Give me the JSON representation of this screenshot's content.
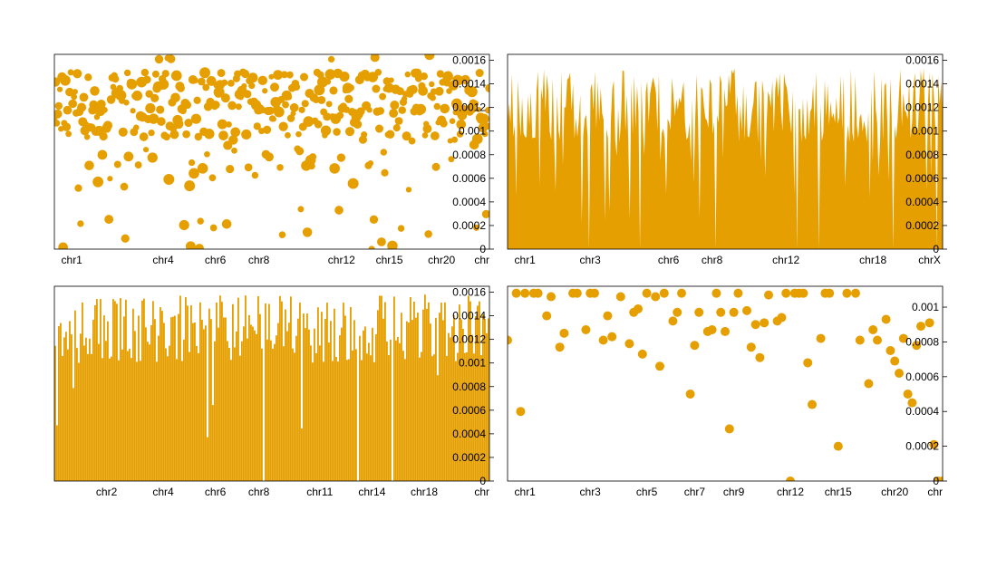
{
  "colors": {
    "series": "#E69F00",
    "frame": "#000000",
    "background": "#ffffff"
  },
  "chart_data": [
    {
      "type": "scatter",
      "title": "",
      "xlabel": "",
      "ylabel": "",
      "ylim": [
        0,
        0.00165
      ],
      "grid": false,
      "y_ticks": [
        "0",
        "0.0002",
        "0.0004",
        "0.0006",
        "0.0008",
        "0.001",
        "0.0012",
        "0.0014",
        "0.0016"
      ],
      "y_tick_values": [
        0,
        0.0002,
        0.0004,
        0.0006,
        0.0008,
        0.001,
        0.0012,
        0.0014,
        0.0016
      ],
      "x_ticks": [
        "chr1",
        "chr4",
        "chr6",
        "chr8",
        "chr12",
        "chr15",
        "chr20",
        "chr"
      ],
      "x_tick_values": [
        0.04,
        0.25,
        0.37,
        0.47,
        0.66,
        0.77,
        0.89,
        0.995
      ],
      "marker": "variable-size-circles",
      "seed": 11,
      "series": [
        {
          "n": 400
        }
      ]
    },
    {
      "type": "area",
      "title": "",
      "xlabel": "",
      "ylabel": "",
      "ylim": [
        0,
        0.00165
      ],
      "grid": false,
      "y_ticks": [
        "0",
        "0.0002",
        "0.0004",
        "0.0006",
        "0.0008",
        "0.001",
        "0.0012",
        "0.0014",
        "0.0016"
      ],
      "y_tick_values": [
        0,
        0.0002,
        0.0004,
        0.0006,
        0.0008,
        0.001,
        0.0012,
        0.0014,
        0.0016
      ],
      "x_ticks": [
        "chr1",
        "chr3",
        "chr6",
        "chr8",
        "chr12",
        "chr18",
        "chrX"
      ],
      "x_tick_values": [
        0.04,
        0.19,
        0.37,
        0.47,
        0.64,
        0.84,
        0.97
      ],
      "seed": 23,
      "series": [
        {
          "n": 300
        }
      ]
    },
    {
      "type": "bar",
      "title": "",
      "xlabel": "",
      "ylabel": "",
      "ylim": [
        0,
        0.00165
      ],
      "grid": false,
      "y_ticks": [
        "0",
        "0.0002",
        "0.0004",
        "0.0006",
        "0.0008",
        "0.001",
        "0.0012",
        "0.0014",
        "0.0016"
      ],
      "y_tick_values": [
        0,
        0.0002,
        0.0004,
        0.0006,
        0.0008,
        0.001,
        0.0012,
        0.0014,
        0.0016
      ],
      "x_ticks": [
        "chr2",
        "chr4",
        "chr6",
        "chr8",
        "chr11",
        "chr14",
        "chr18",
        "chr"
      ],
      "x_tick_values": [
        0.12,
        0.25,
        0.37,
        0.47,
        0.61,
        0.73,
        0.85,
        0.995
      ],
      "seed": 37,
      "series": [
        {
          "n": 240
        }
      ]
    },
    {
      "type": "scatter",
      "title": "",
      "xlabel": "",
      "ylabel": "",
      "ylim": [
        0,
        0.00112
      ],
      "grid": false,
      "y_ticks": [
        "0",
        "0.0002",
        "0.0004",
        "0.0006",
        "0.0008",
        "0.001"
      ],
      "y_tick_values": [
        0,
        0.0002,
        0.0004,
        0.0006,
        0.0008,
        0.001
      ],
      "x_ticks": [
        "chr1",
        "chr3",
        "chr5",
        "chr7",
        "chr9",
        "chr12",
        "chr15",
        "chr20",
        "chr"
      ],
      "x_tick_values": [
        0.04,
        0.19,
        0.32,
        0.43,
        0.52,
        0.65,
        0.76,
        0.89,
        0.995
      ],
      "marker": "circle",
      "x": [
        0.0,
        0.02,
        0.03,
        0.04,
        0.06,
        0.07,
        0.09,
        0.1,
        0.12,
        0.13,
        0.15,
        0.16,
        0.18,
        0.19,
        0.2,
        0.22,
        0.23,
        0.24,
        0.26,
        0.28,
        0.29,
        0.3,
        0.31,
        0.32,
        0.34,
        0.35,
        0.36,
        0.38,
        0.39,
        0.4,
        0.42,
        0.43,
        0.44,
        0.46,
        0.47,
        0.48,
        0.49,
        0.5,
        0.51,
        0.52,
        0.53,
        0.55,
        0.56,
        0.57,
        0.58,
        0.59,
        0.6,
        0.62,
        0.63,
        0.64,
        0.65,
        0.66,
        0.67,
        0.68,
        0.69,
        0.7,
        0.72,
        0.73,
        0.74,
        0.76,
        0.78,
        0.8,
        0.81,
        0.83,
        0.84,
        0.85,
        0.87,
        0.88,
        0.89,
        0.9,
        0.91,
        0.92,
        0.93,
        0.94,
        0.95,
        0.97,
        0.98,
        0.99,
        1.0
      ],
      "y": [
        0.00081,
        0.00108,
        0.0004,
        0.00108,
        0.00108,
        0.00108,
        0.00095,
        0.00106,
        0.00077,
        0.00085,
        0.00108,
        0.00108,
        0.00087,
        0.00108,
        0.00108,
        0.00081,
        0.00095,
        0.00083,
        0.00106,
        0.00079,
        0.00097,
        0.00099,
        0.00073,
        0.00108,
        0.00106,
        0.00066,
        0.00108,
        0.00092,
        0.00097,
        0.00108,
        0.0005,
        0.00078,
        0.00097,
        0.00086,
        0.00087,
        0.00108,
        0.00097,
        0.00086,
        0.0003,
        0.00097,
        0.00108,
        0.00098,
        0.00077,
        0.0009,
        0.00071,
        0.00091,
        0.00107,
        0.00092,
        0.00094,
        0.00108,
        0.0,
        0.00108,
        0.00108,
        0.00108,
        0.00068,
        0.00044,
        0.00082,
        0.00108,
        0.00108,
        0.0002,
        0.00108,
        0.00108,
        0.00081,
        0.00056,
        0.00087,
        0.00081,
        0.00093,
        0.00075,
        0.00069,
        0.00062,
        0.00082,
        0.0005,
        0.00045,
        0.00078,
        0.00089,
        0.00091,
        0.00021,
        0.0,
        0.0
      ]
    }
  ]
}
